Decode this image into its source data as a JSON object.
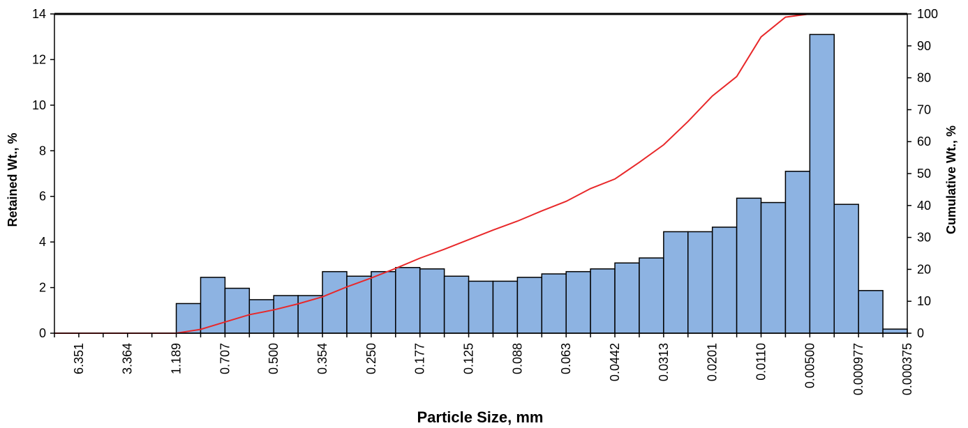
{
  "chart_data": {
    "type": "bar",
    "xlabel": "Particle Size, mm",
    "ylabel": "Retained Wt., %",
    "y2label": "Cumulative Wt., %",
    "ylim": [
      0,
      14
    ],
    "y2lim": [
      0,
      100
    ],
    "yticks": [
      0,
      2,
      4,
      6,
      8,
      10,
      12,
      14
    ],
    "y2ticks": [
      0,
      10,
      20,
      30,
      40,
      50,
      60,
      70,
      80,
      90,
      100
    ],
    "xtick_labels": [
      "6.351",
      "3.364",
      "1.189",
      "0.707",
      "0.500",
      "0.354",
      "0.250",
      "0.177",
      "0.125",
      "0.088",
      "0.063",
      "0.0442",
      "0.0313",
      "0.0201",
      "0.0110",
      "0.00500",
      "0.000977",
      "0.000375"
    ],
    "bar_count": 35,
    "bar_start_index": 5,
    "bar_color": "#8db3e2",
    "line_color": "#e8282a",
    "retained": [
      1.3,
      2.45,
      1.97,
      1.47,
      1.65,
      1.65,
      2.7,
      2.5,
      2.7,
      2.88,
      2.82,
      2.5,
      2.28,
      2.28,
      2.45,
      2.6,
      2.7,
      2.82,
      3.08,
      3.3,
      4.45,
      4.45,
      4.65,
      5.92,
      5.73,
      7.1,
      13.1,
      5.65,
      1.87,
      0.18
    ],
    "cumulative": [
      0,
      0,
      0,
      0,
      0,
      0,
      1.2,
      3.5,
      5.8,
      7.3,
      9.2,
      11.4,
      14.5,
      17.3,
      20.3,
      23.5,
      26.3,
      29.3,
      32.3,
      35.1,
      38.3,
      41.3,
      45.3,
      48.3,
      53.5,
      59,
      66.3,
      74.3,
      80.4,
      92.8,
      99,
      100,
      100,
      100,
      100,
      100
    ]
  }
}
